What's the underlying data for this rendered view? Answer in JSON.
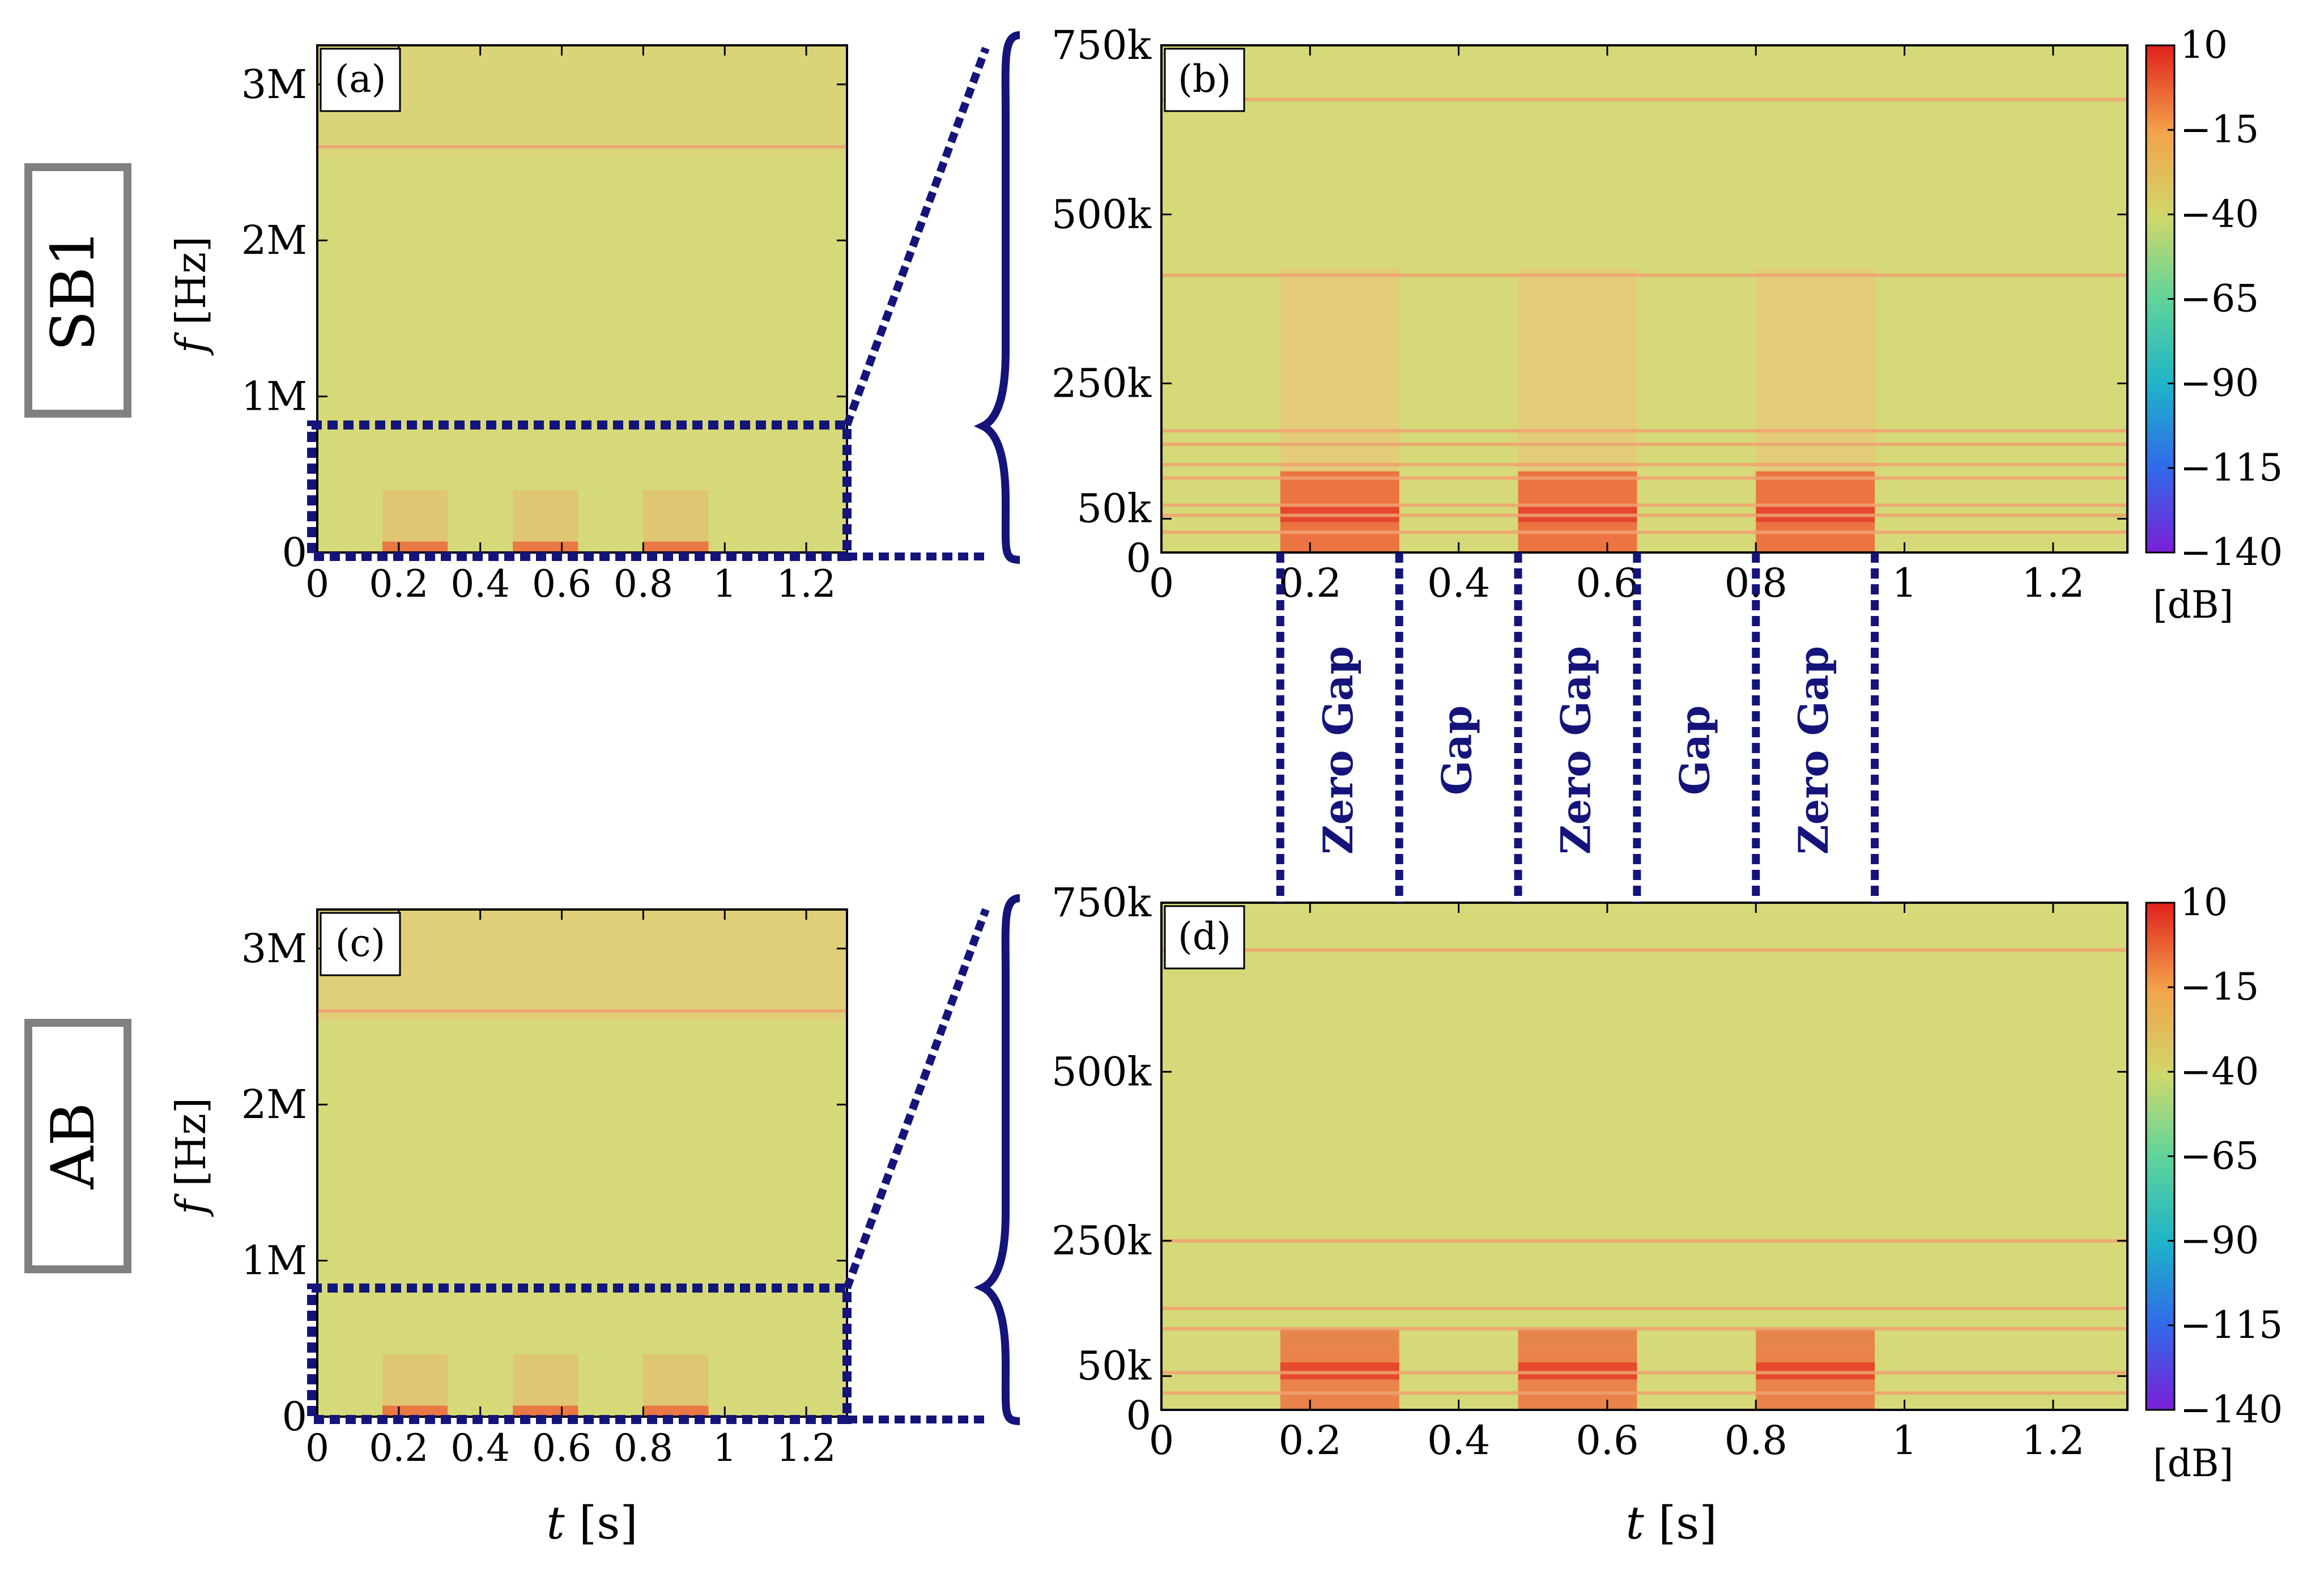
{
  "figure_labels": {
    "row_top": "SB1",
    "row_bottom": "AB",
    "panel_a": "(a)",
    "panel_b": "(b)",
    "panel_c": "(c)",
    "panel_d": "(d)",
    "ylabel_italic": "f",
    "ylabel_unit": "[Hz]",
    "xlabel_italic": "t",
    "xlabel_unit": "[s]",
    "colorbar_unit": "[dB]"
  },
  "chart_data": [
    {
      "id": "a",
      "type": "heatmap",
      "title": "(a)",
      "row": "SB1",
      "xlabel": "t [s]",
      "ylabel": "f [Hz]",
      "xlim": [
        0,
        1.3
      ],
      "ylim": [
        0,
        3250000
      ],
      "xticks": [
        0,
        0.2,
        0.4,
        0.6,
        0.8,
        1,
        1.2
      ],
      "xtick_labels": [
        "0",
        "0.2",
        "0.4",
        "0.6",
        "0.8",
        "1",
        "1.2"
      ],
      "yticks": [
        0,
        1000000,
        2000000,
        3000000
      ],
      "ytick_labels": [
        "0",
        "1M",
        "2M",
        "3M"
      ],
      "zoom_region": {
        "t": [
          0,
          1.3
        ],
        "f": [
          0,
          750000
        ]
      },
      "lines_hz": [
        2600000
      ],
      "bursts": [
        {
          "t0": 0.16,
          "t1": 0.32
        },
        {
          "t0": 0.48,
          "t1": 0.64
        },
        {
          "t0": 0.8,
          "t1": 0.96
        }
      ],
      "background_db": -30
    },
    {
      "id": "b",
      "type": "heatmap",
      "title": "(b)",
      "row": "SB1",
      "xlabel": "t [s]",
      "ylabel": "f [Hz]",
      "xlim": [
        0,
        1.3
      ],
      "ylim": [
        0,
        750000
      ],
      "xticks": [
        0,
        0.2,
        0.4,
        0.6,
        0.8,
        1,
        1.2
      ],
      "xtick_labels": [
        "0",
        "0.2",
        "0.4",
        "0.6",
        "0.8",
        "1",
        "1.2"
      ],
      "yticks": [
        0,
        50000,
        250000,
        500000,
        750000
      ],
      "ytick_labels": [
        "0",
        "50k",
        "250k",
        "500k",
        "750k"
      ],
      "lines_hz": [
        30000,
        55000,
        70000,
        110000,
        130000,
        160000,
        180000,
        410000,
        670000
      ],
      "bursts": [
        {
          "t0": 0.16,
          "t1": 0.32
        },
        {
          "t0": 0.48,
          "t1": 0.64
        },
        {
          "t0": 0.8,
          "t1": 0.96
        }
      ],
      "colorbar": {
        "min": -140,
        "max": 10,
        "ticks": [
          10,
          -15,
          -40,
          -65,
          -90,
          -115,
          -140
        ],
        "tick_labels": [
          "10",
          "−15",
          "−40",
          "−65",
          "−90",
          "−115",
          "−140"
        ],
        "unit": "[dB]"
      }
    },
    {
      "id": "c",
      "type": "heatmap",
      "title": "(c)",
      "row": "AB",
      "xlabel": "t [s]",
      "ylabel": "f [Hz]",
      "xlim": [
        0,
        1.3
      ],
      "ylim": [
        0,
        3250000
      ],
      "xticks": [
        0,
        0.2,
        0.4,
        0.6,
        0.8,
        1,
        1.2
      ],
      "xtick_labels": [
        "0",
        "0.2",
        "0.4",
        "0.6",
        "0.8",
        "1",
        "1.2"
      ],
      "yticks": [
        0,
        1000000,
        2000000,
        3000000
      ],
      "ytick_labels": [
        "0",
        "1M",
        "2M",
        "3M"
      ],
      "zoom_region": {
        "t": [
          0,
          1.3
        ],
        "f": [
          0,
          750000
        ]
      },
      "lines_hz": [
        2600000
      ],
      "bursts": [
        {
          "t0": 0.16,
          "t1": 0.32
        },
        {
          "t0": 0.48,
          "t1": 0.64
        },
        {
          "t0": 0.8,
          "t1": 0.96
        }
      ],
      "background_db": -28
    },
    {
      "id": "d",
      "type": "heatmap",
      "title": "(d)",
      "row": "AB",
      "xlabel": "t [s]",
      "ylabel": "f [Hz]",
      "xlim": [
        0,
        1.3
      ],
      "ylim": [
        0,
        750000
      ],
      "xticks": [
        0,
        0.2,
        0.4,
        0.6,
        0.8,
        1,
        1.2
      ],
      "xtick_labels": [
        "0",
        "0.2",
        "0.4",
        "0.6",
        "0.8",
        "1",
        "1.2"
      ],
      "yticks": [
        0,
        50000,
        250000,
        500000,
        750000
      ],
      "ytick_labels": [
        "0",
        "50k",
        "250k",
        "500k",
        "750k"
      ],
      "lines_hz": [
        25000,
        55000,
        120000,
        150000,
        250000,
        680000
      ],
      "bursts": [
        {
          "t0": 0.16,
          "t1": 0.32
        },
        {
          "t0": 0.48,
          "t1": 0.64
        },
        {
          "t0": 0.8,
          "t1": 0.96
        }
      ],
      "colorbar": {
        "min": -140,
        "max": 10,
        "ticks": [
          10,
          -15,
          -40,
          -65,
          -90,
          -115,
          -140
        ],
        "tick_labels": [
          "10",
          "−15",
          "−40",
          "−65",
          "−90",
          "−115",
          "−140"
        ],
        "unit": "[dB]"
      }
    }
  ],
  "gap_annotations": [
    {
      "label": "Zero Gap",
      "t0": 0.16,
      "t1": 0.32
    },
    {
      "label": "Gap",
      "t0": 0.32,
      "t1": 0.48
    },
    {
      "label": "Zero Gap",
      "t0": 0.48,
      "t1": 0.64
    },
    {
      "label": "Gap",
      "t0": 0.64,
      "t1": 0.8
    },
    {
      "label": "Zero Gap",
      "t0": 0.8,
      "t1": 0.96
    }
  ],
  "colors": {
    "background": "#d6d978",
    "line": "#f0a270",
    "burst": "#ec6a3c",
    "burst_strong": "#e5422a",
    "navy": "#14147a",
    "row_box": "#808080"
  }
}
